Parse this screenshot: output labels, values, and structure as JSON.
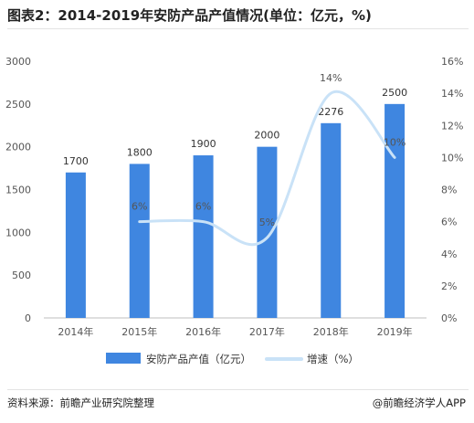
{
  "title": "图表2：2014-2019年安防产品产值情况(单位：亿元，%)",
  "source": "资料来源：前瞻产业研究院整理",
  "brand": "@前瞻经济学人APP",
  "colors": {
    "bar": "#3f86e0",
    "line": "#c9e2f7",
    "axis_text": "#555555",
    "label_text": "#333333",
    "growth_label_text": "#555555"
  },
  "chart_data": {
    "type": "bar",
    "categories": [
      "2014年",
      "2015年",
      "2016年",
      "2017年",
      "2018年",
      "2019年"
    ],
    "series": [
      {
        "name": "安防产品产值（亿元）",
        "type": "bar",
        "axis": "left",
        "values": [
          1700,
          1800,
          1900,
          2000,
          2276,
          2500
        ],
        "labels": [
          "1700",
          "1800",
          "1900",
          "2000",
          "2276",
          "2500"
        ]
      },
      {
        "name": "增速（%）",
        "type": "line",
        "axis": "right",
        "smooth": true,
        "values": [
          null,
          6,
          6,
          5,
          14,
          10
        ],
        "labels": [
          "",
          "6%",
          "6%",
          "5%",
          "14%",
          "10%"
        ]
      }
    ],
    "y_left": {
      "ylim": [
        0,
        3000
      ],
      "ticks": [
        "0",
        "500",
        "1000",
        "1500",
        "2000",
        "2500",
        "3000"
      ]
    },
    "y_right": {
      "ylim": [
        0,
        16
      ],
      "ticks": [
        "0%",
        "2%",
        "4%",
        "6%",
        "8%",
        "10%",
        "12%",
        "14%",
        "16%"
      ]
    },
    "legend_position": "bottom",
    "grid": false
  }
}
